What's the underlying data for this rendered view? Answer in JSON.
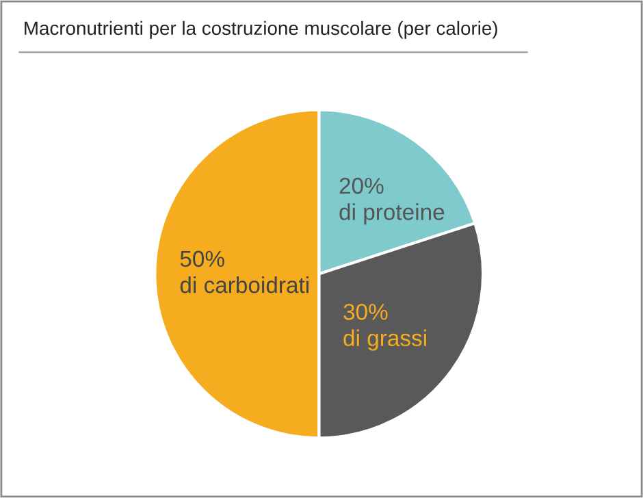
{
  "chart_data": {
    "type": "pie",
    "title": "Macronutrienti per la costruzione muscolare (per calorie)",
    "categories": [
      "di proteine",
      "di grassi",
      "di carboidrati"
    ],
    "values": [
      20,
      30,
      50
    ],
    "colors": [
      "#7fcacd",
      "#595959",
      "#f5ad1f"
    ],
    "value_labels": [
      "20%",
      "30%",
      "50%"
    ]
  }
}
